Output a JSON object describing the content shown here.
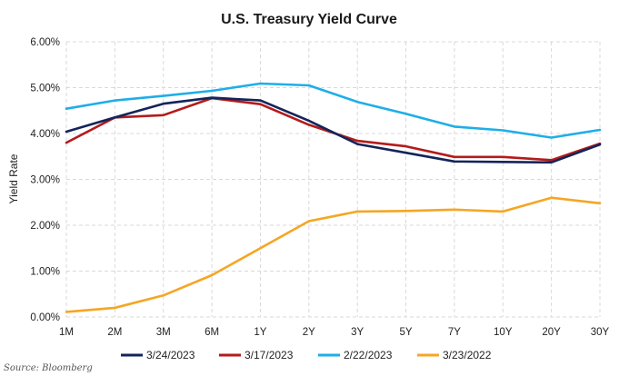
{
  "chart_data": {
    "type": "line",
    "title": "U.S. Treasury Yield Curve",
    "xlabel": "",
    "ylabel": "Yield Rate",
    "categories": [
      "1M",
      "2M",
      "3M",
      "6M",
      "1Y",
      "2Y",
      "3Y",
      "5Y",
      "7Y",
      "10Y",
      "20Y",
      "30Y"
    ],
    "ylim": [
      0,
      6
    ],
    "yticks": [
      0,
      1,
      2,
      3,
      4,
      5,
      6
    ],
    "ytick_labels": [
      "0.00%",
      "1.00%",
      "2.00%",
      "3.00%",
      "4.00%",
      "5.00%",
      "6.00%"
    ],
    "grid": true,
    "legend_position": "bottom",
    "series": [
      {
        "name": "3/24/2023",
        "color": "#14245a",
        "values": [
          4.04,
          4.35,
          4.65,
          4.78,
          4.72,
          4.28,
          3.77,
          3.58,
          3.39,
          3.38,
          3.37,
          3.76
        ]
      },
      {
        "name": "3/17/2023",
        "color": "#b31b1b",
        "values": [
          3.8,
          4.35,
          4.4,
          4.77,
          4.64,
          4.19,
          3.84,
          3.72,
          3.49,
          3.49,
          3.42,
          3.78
        ]
      },
      {
        "name": "2/22/2023",
        "color": "#1eaee8",
        "values": [
          4.54,
          4.72,
          4.82,
          4.93,
          5.09,
          5.05,
          4.69,
          4.43,
          4.15,
          4.07,
          3.91,
          4.08
        ]
      },
      {
        "name": "3/23/2022",
        "color": "#f5a623",
        "values": [
          0.11,
          0.2,
          0.47,
          0.91,
          1.5,
          2.09,
          2.3,
          2.31,
          2.34,
          2.3,
          2.6,
          2.48
        ]
      }
    ],
    "source": "Source: Bloomberg"
  }
}
